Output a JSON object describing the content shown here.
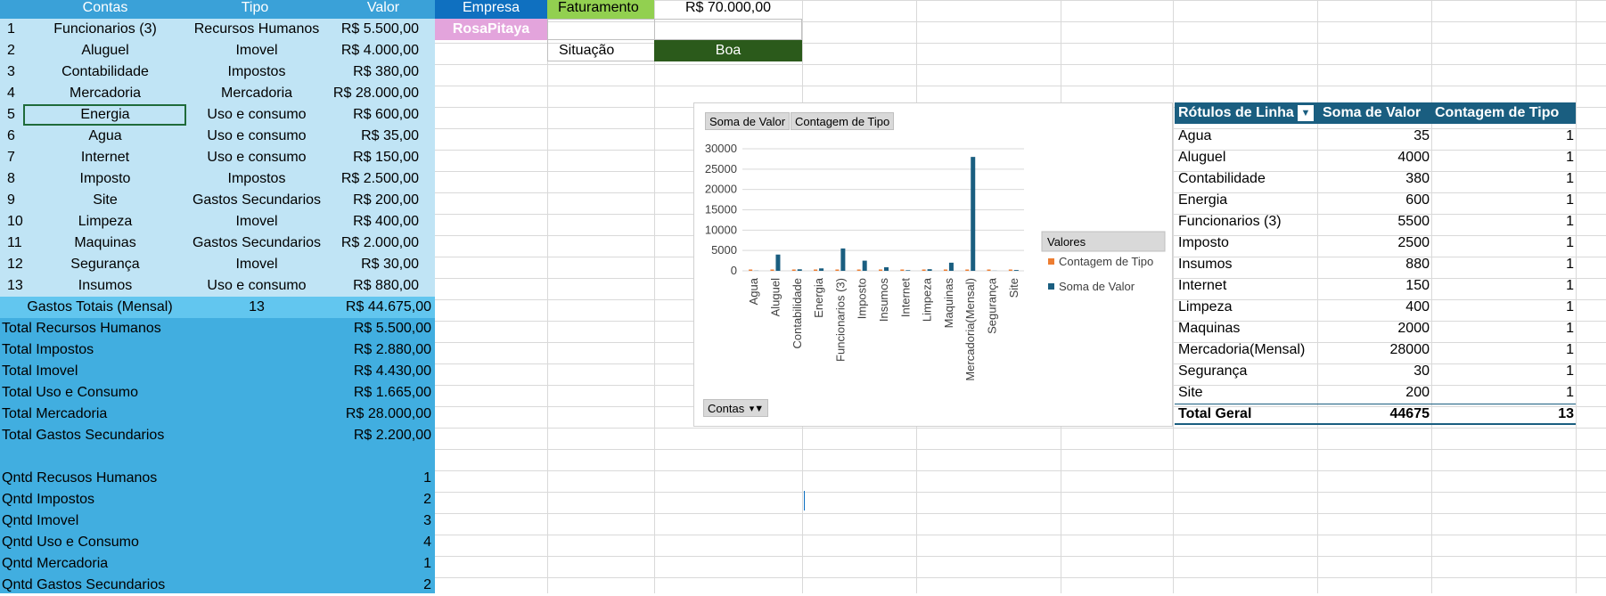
{
  "sheet": {
    "headers": {
      "contas": "Contas",
      "tipo": "Tipo",
      "valor": "Valor"
    },
    "rows": [
      {
        "n": "1",
        "conta": "Funcionarios (3)",
        "tipo": "Recursos Humanos",
        "valor": "R$ 5.500,00"
      },
      {
        "n": "2",
        "conta": "Aluguel",
        "tipo": "Imovel",
        "valor": "R$ 4.000,00"
      },
      {
        "n": "3",
        "conta": "Contabilidade",
        "tipo": "Impostos",
        "valor": "R$ 380,00"
      },
      {
        "n": "4",
        "conta": "Mercadoria",
        "tipo": "Mercadoria",
        "valor": "R$ 28.000,00"
      },
      {
        "n": "5",
        "conta": "Energia",
        "tipo": "Uso e consumo",
        "valor": "R$ 600,00"
      },
      {
        "n": "6",
        "conta": "Agua",
        "tipo": "Uso e consumo",
        "valor": "R$ 35,00"
      },
      {
        "n": "7",
        "conta": "Internet",
        "tipo": "Uso e consumo",
        "valor": "R$ 150,00"
      },
      {
        "n": "8",
        "conta": "Imposto",
        "tipo": "Impostos",
        "valor": "R$ 2.500,00"
      },
      {
        "n": "9",
        "conta": "Site",
        "tipo": "Gastos Secundarios",
        "valor": "R$ 200,00"
      },
      {
        "n": "10",
        "conta": "Limpeza",
        "tipo": "Imovel",
        "valor": "R$ 400,00"
      },
      {
        "n": "11",
        "conta": "Maquinas",
        "tipo": "Gastos Secundarios",
        "valor": "R$ 2.000,00"
      },
      {
        "n": "12",
        "conta": "Segurança",
        "tipo": "Imovel",
        "valor": "R$ 30,00"
      },
      {
        "n": "13",
        "conta": "Insumos",
        "tipo": "Uso e consumo",
        "valor": "R$ 880,00"
      }
    ],
    "gastos_totais": {
      "label": "Gastos Totais (Mensal)",
      "count": "13",
      "valor": "R$ 44.675,00"
    },
    "totals": [
      {
        "label": "Total Recursos Humanos",
        "valor": "R$ 5.500,00"
      },
      {
        "label": "Total Impostos",
        "valor": "R$ 2.880,00"
      },
      {
        "label": "Total Imovel",
        "valor": "R$ 4.430,00"
      },
      {
        "label": "Total Uso e Consumo",
        "valor": "R$ 1.665,00"
      },
      {
        "label": "Total Mercadoria",
        "valor": "R$ 28.000,00"
      },
      {
        "label": "Total Gastos Secundarios",
        "valor": "R$ 2.200,00"
      }
    ],
    "qntds": [
      {
        "label": "Qntd Recusos Humanos",
        "valor": "1"
      },
      {
        "label": "Qntd Impostos",
        "valor": "2"
      },
      {
        "label": "Qntd Imovel",
        "valor": "3"
      },
      {
        "label": "Qntd Uso e Consumo",
        "valor": "4"
      },
      {
        "label": "Qntd Mercadoria",
        "valor": "1"
      },
      {
        "label": "Qntd Gastos Secundarios",
        "valor": "2"
      }
    ],
    "empresa": {
      "label": "Empresa",
      "name": "RosaPitaya"
    },
    "faturamento": {
      "label": "Faturamento",
      "valor": "R$ 70.000,00"
    },
    "situacao": {
      "label": "Situação",
      "valor": "Boa"
    }
  },
  "colors": {
    "light_blue": "#c0e4f5",
    "dark_blue": "#41aee0",
    "header_blue": "#3aa1d8",
    "total_blue": "#62c6ef",
    "empresa_bg": "#0f70c0",
    "rosa_bg": "#e3a4dc",
    "faturamento_bg": "#92d050",
    "boa_bg": "#2b5a1b",
    "pivot_header": "#1a5e80",
    "series_soma": "#1a5e80",
    "series_contagem": "#ed7d31"
  },
  "chart_buttons": {
    "soma": "Soma de Valor",
    "contagem": "Contagem de Tipo",
    "contas": "Contas"
  },
  "chart_data": {
    "type": "bar",
    "categories": [
      "Agua",
      "Aluguel",
      "Contabilidade",
      "Energia",
      "Funcionarios (3)",
      "Imposto",
      "Insumos",
      "Internet",
      "Limpeza",
      "Maquinas",
      "Mercadoria(Mensal)",
      "Segurança",
      "Site"
    ],
    "series": [
      {
        "name": "Contagem de Tipo",
        "values": [
          1,
          1,
          1,
          1,
          1,
          1,
          1,
          1,
          1,
          1,
          1,
          1,
          1
        ]
      },
      {
        "name": "Soma de Valor",
        "values": [
          35,
          4000,
          380,
          600,
          5500,
          2500,
          880,
          150,
          400,
          2000,
          28000,
          30,
          200
        ]
      }
    ],
    "yticks": [
      "30000",
      "25000",
      "20000",
      "15000",
      "10000",
      "5000",
      "0"
    ],
    "ylim": [
      0,
      30000
    ],
    "legend_title": "Valores",
    "grid": true,
    "legend_position": "right"
  },
  "pivot": {
    "headers": {
      "rotulos": "Rótulos de Linha",
      "soma": "Soma de Valor",
      "contagem": "Contagem de Tipo"
    },
    "rows": [
      {
        "label": "Agua",
        "soma": "35",
        "count": "1"
      },
      {
        "label": "Aluguel",
        "soma": "4000",
        "count": "1"
      },
      {
        "label": "Contabilidade",
        "soma": "380",
        "count": "1"
      },
      {
        "label": "Energia",
        "soma": "600",
        "count": "1"
      },
      {
        "label": "Funcionarios (3)",
        "soma": "5500",
        "count": "1"
      },
      {
        "label": "Imposto",
        "soma": "2500",
        "count": "1"
      },
      {
        "label": "Insumos",
        "soma": "880",
        "count": "1"
      },
      {
        "label": "Internet",
        "soma": "150",
        "count": "1"
      },
      {
        "label": "Limpeza",
        "soma": "400",
        "count": "1"
      },
      {
        "label": "Maquinas",
        "soma": "2000",
        "count": "1"
      },
      {
        "label": "Mercadoria(Mensal)",
        "soma": "28000",
        "count": "1"
      },
      {
        "label": "Segurança",
        "soma": "30",
        "count": "1"
      },
      {
        "label": "Site",
        "soma": "200",
        "count": "1"
      }
    ],
    "total": {
      "label": "Total Geral",
      "soma": "44675",
      "count": "13"
    }
  }
}
